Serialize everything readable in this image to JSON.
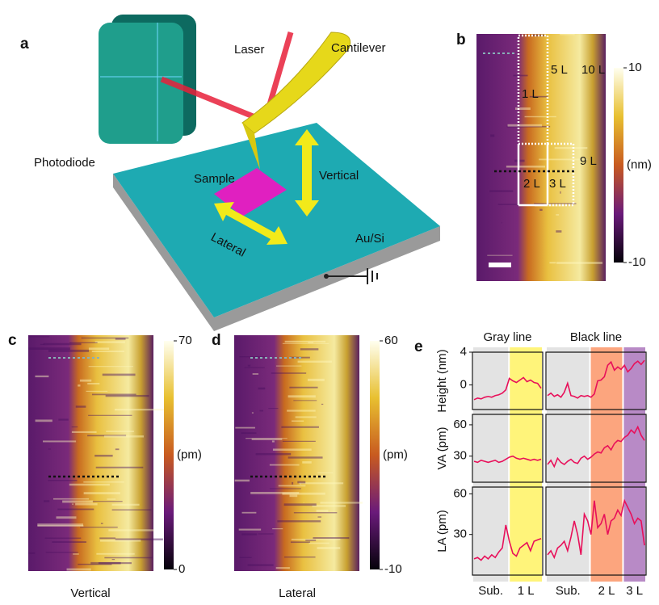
{
  "panel_a": {
    "label": "a",
    "laser": "Laser",
    "cantilever": "Cantilever",
    "photodiode": "Photodiode",
    "sample": "Sample",
    "vertical": "Vertical",
    "lateral": "Lateral",
    "substrate": "Au/Si"
  },
  "panel_b": {
    "label": "b",
    "layers": [
      "5 L",
      "10 L",
      "1 L",
      "9 L",
      "2 L",
      "3 L"
    ],
    "colorbar": {
      "ticks": [
        10,
        -10
      ],
      "unit": "(nm)"
    }
  },
  "panel_c": {
    "label": "c",
    "caption": "Vertical",
    "colorbar": {
      "ticks": [
        70,
        0
      ],
      "unit": "(pm)"
    }
  },
  "panel_d": {
    "label": "d",
    "caption": "Lateral",
    "colorbar": {
      "ticks": [
        60,
        -10
      ],
      "unit": "(pm)"
    }
  },
  "panel_e": {
    "label": "e",
    "columns": [
      {
        "title": "Gray line",
        "regions": [
          {
            "label": "Sub.",
            "color": "#e3e3e3"
          },
          {
            "label": "1 L",
            "color": "#fff47a"
          }
        ]
      },
      {
        "title": "Black line",
        "regions": [
          {
            "label": "Sub.",
            "color": "#e3e3e3"
          },
          {
            "label": "2 L",
            "color": "#fca57e"
          },
          {
            "label": "3 L",
            "color": "#b88ac6"
          }
        ]
      }
    ],
    "line_color": "#e8105a",
    "rows": [
      {
        "ylabel": "Height (nm)",
        "ylim": [
          -3,
          4
        ],
        "yticks": [
          0,
          4
        ],
        "gray": [
          -1.8,
          -1.6,
          -1.7,
          -1.5,
          -1.4,
          -1.5,
          -1.3,
          -1.2,
          -1.0,
          -0.6,
          0.8,
          0.5,
          0.3,
          0.6,
          0.9,
          0.4,
          0.6,
          0.3,
          0.2,
          -0.4
        ],
        "black": [
          -1.3,
          -1.0,
          -1.4,
          -1.2,
          -1.5,
          -0.9,
          0.2,
          -1.3,
          -1.4,
          -1.6,
          -1.3,
          -1.4,
          -1.3,
          -1.5,
          -1.1,
          0.5,
          0.6,
          1.0,
          2.4,
          2.8,
          1.8,
          2.2,
          1.9,
          2.4,
          1.6,
          2.0,
          2.6,
          2.9,
          2.5,
          3.0
        ]
      },
      {
        "ylabel": "VA (pm)",
        "ylim": [
          5,
          70
        ],
        "yticks": [
          30,
          60
        ],
        "gray": [
          25,
          24,
          26,
          25,
          24,
          25,
          26,
          24,
          25,
          27,
          29,
          30,
          28,
          27,
          28,
          27,
          26,
          27,
          26,
          27
        ],
        "black": [
          22,
          26,
          20,
          28,
          24,
          22,
          25,
          27,
          24,
          23,
          28,
          30,
          27,
          29,
          32,
          34,
          33,
          38,
          40,
          36,
          42,
          45,
          44,
          48,
          50,
          55,
          52,
          58,
          50,
          45
        ]
      },
      {
        "ylabel": "LA (pm)",
        "ylim": [
          0,
          65
        ],
        "yticks": [
          30,
          60
        ],
        "gray": [
          12,
          13,
          11,
          14,
          12,
          15,
          13,
          17,
          20,
          37,
          25,
          16,
          14,
          20,
          22,
          24,
          18,
          25,
          26,
          27
        ],
        "black": [
          15,
          18,
          13,
          20,
          22,
          25,
          18,
          28,
          40,
          30,
          15,
          45,
          40,
          30,
          55,
          35,
          38,
          45,
          30,
          40,
          42,
          48,
          44,
          55,
          50,
          45,
          38,
          42,
          40,
          22
        ]
      }
    ]
  }
}
